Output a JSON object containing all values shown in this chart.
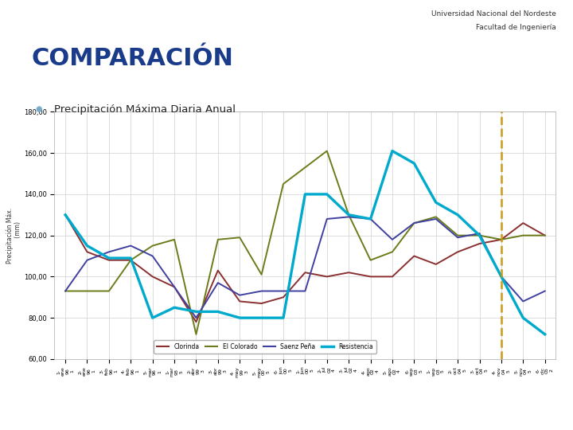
{
  "title_main": "COMPARACIÓN",
  "subtitle": "Precipitación Máxima Diaria Anual",
  "university_line1": "Universidad Nacional del Nordeste",
  "university_line2": "Facultad de Ingeniería",
  "ylim": [
    60,
    180
  ],
  "yticks": [
    60,
    80,
    100,
    120,
    140,
    160,
    180
  ],
  "ytick_labels": [
    "60,00",
    "80,00",
    "100,00",
    "120,00",
    "140,00",
    "160,00",
    "180,00"
  ],
  "clorinda": [
    130,
    112,
    108,
    108,
    100,
    95,
    78,
    103,
    88,
    87,
    90,
    102,
    100,
    102,
    100,
    100,
    110,
    106,
    112,
    116,
    118,
    126,
    120
  ],
  "el_colorado": [
    93,
    93,
    93,
    108,
    115,
    118,
    72,
    118,
    119,
    101,
    145,
    153,
    161,
    130,
    108,
    112,
    126,
    129,
    120,
    120,
    118,
    120,
    120
  ],
  "saenz_pena": [
    93,
    108,
    112,
    115,
    110,
    95,
    80,
    97,
    91,
    93,
    93,
    93,
    128,
    129,
    128,
    118,
    126,
    128,
    119,
    121,
    100,
    88,
    93
  ],
  "resistencia": [
    130,
    115,
    109,
    109,
    80,
    85,
    83,
    83,
    80,
    80,
    80,
    140,
    140,
    130,
    128,
    161,
    155,
    136,
    130,
    120,
    100,
    80,
    72
  ],
  "vline_x": 20,
  "vline_color": "#c8960a",
  "line_colors": {
    "clorinda": "#8b3030",
    "el_colorado": "#6b7c1a",
    "saenz_pena": "#4040a0",
    "resistencia": "#00aacc"
  },
  "bg_color": "#ffffff",
  "sidebar_color": "#1e90ff",
  "sidebar_dark": "#1565c0",
  "title_color": "#1a3a8a",
  "grid_color": "#d0d0d0"
}
